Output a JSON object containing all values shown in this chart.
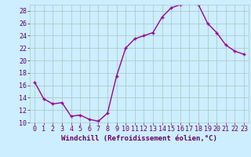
{
  "hours": [
    0,
    1,
    2,
    3,
    4,
    5,
    6,
    7,
    8,
    9,
    10,
    11,
    12,
    13,
    14,
    15,
    16,
    17,
    18,
    19,
    20,
    21,
    22,
    23
  ],
  "values": [
    16.5,
    13.8,
    13.0,
    13.2,
    11.0,
    11.2,
    10.5,
    10.2,
    11.5,
    17.5,
    22.0,
    23.5,
    24.0,
    24.5,
    27.0,
    28.5,
    29.0,
    29.2,
    29.0,
    26.0,
    24.5,
    22.5,
    21.5,
    21.0
  ],
  "line_color": "#990099",
  "marker": "+",
  "bg_color": "#cceeff",
  "grid_color": "#aacccc",
  "axis_color": "#660066",
  "xlabel": "Windchill (Refroidissement éolien,°C)",
  "ylim": [
    10,
    29
  ],
  "xlim_min": -0.5,
  "xlim_max": 23.5,
  "yticks": [
    10,
    12,
    14,
    16,
    18,
    20,
    22,
    24,
    26,
    28
  ],
  "xticks": [
    0,
    1,
    2,
    3,
    4,
    5,
    6,
    7,
    8,
    9,
    10,
    11,
    12,
    13,
    14,
    15,
    16,
    17,
    18,
    19,
    20,
    21,
    22,
    23
  ],
  "xlabel_fontsize": 6.5,
  "tick_fontsize": 6,
  "line_width": 1.0,
  "marker_size": 3
}
